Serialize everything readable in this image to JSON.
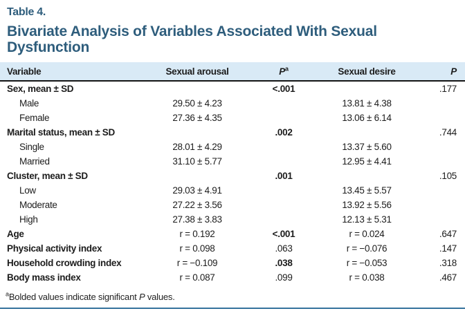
{
  "header": {
    "table_label": "Table 4.",
    "title": "Bivariate Analysis of Variables Associated With Sexual Dysfunction"
  },
  "colors": {
    "accent_teal": "#2e5d7c",
    "header_band_bg": "#d9eaf6",
    "header_rule_black": "#141414",
    "bottom_rule_teal": "#34729c"
  },
  "table": {
    "columns": {
      "variable": "Variable",
      "sexual_arousal": "Sexual arousal",
      "p_arousal": {
        "label": "P",
        "sup": "a"
      },
      "sexual_desire": "Sexual desire",
      "p_desire": "P"
    },
    "rows": [
      {
        "label": "Sex, mean ± SD",
        "bold": true,
        "indent": false,
        "arousal": "",
        "p1": "<.001",
        "p1_bold": true,
        "desire": "",
        "p2": ".177",
        "p2_bold": false
      },
      {
        "label": "Male",
        "bold": false,
        "indent": true,
        "arousal": "29.50 ± 4.23",
        "p1": "",
        "p1_bold": false,
        "desire": "13.81 ± 4.38",
        "p2": "",
        "p2_bold": false
      },
      {
        "label": "Female",
        "bold": false,
        "indent": true,
        "arousal": "27.36 ± 4.35",
        "p1": "",
        "p1_bold": false,
        "desire": "13.06 ± 6.14",
        "p2": "",
        "p2_bold": false
      },
      {
        "label": "Marital status, mean ± SD",
        "bold": true,
        "indent": false,
        "arousal": "",
        "p1": ".002",
        "p1_bold": true,
        "desire": "",
        "p2": ".744",
        "p2_bold": false
      },
      {
        "label": "Single",
        "bold": false,
        "indent": true,
        "arousal": "28.01 ± 4.29",
        "p1": "",
        "p1_bold": false,
        "desire": "13.37 ± 5.60",
        "p2": "",
        "p2_bold": false
      },
      {
        "label": "Married",
        "bold": false,
        "indent": true,
        "arousal": "31.10 ± 5.77",
        "p1": "",
        "p1_bold": false,
        "desire": "12.95 ± 4.41",
        "p2": "",
        "p2_bold": false
      },
      {
        "label": "Cluster, mean ± SD",
        "bold": true,
        "indent": false,
        "arousal": "",
        "p1": ".001",
        "p1_bold": true,
        "desire": "",
        "p2": ".105",
        "p2_bold": false
      },
      {
        "label": "Low",
        "bold": false,
        "indent": true,
        "arousal": "29.03 ± 4.91",
        "p1": "",
        "p1_bold": false,
        "desire": "13.45 ± 5.57",
        "p2": "",
        "p2_bold": false
      },
      {
        "label": "Moderate",
        "bold": false,
        "indent": true,
        "arousal": "27.22 ± 3.56",
        "p1": "",
        "p1_bold": false,
        "desire": "13.92 ± 5.56",
        "p2": "",
        "p2_bold": false
      },
      {
        "label": "High",
        "bold": false,
        "indent": true,
        "arousal": "27.38 ± 3.83",
        "p1": "",
        "p1_bold": false,
        "desire": "12.13 ± 5.31",
        "p2": "",
        "p2_bold": false
      },
      {
        "label": "Age",
        "bold": true,
        "indent": false,
        "arousal": "r = 0.192",
        "p1": "<.001",
        "p1_bold": true,
        "desire": "r = 0.024",
        "p2": ".647",
        "p2_bold": false
      },
      {
        "label": "Physical activity index",
        "bold": true,
        "indent": false,
        "arousal": "r = 0.098",
        "p1": ".063",
        "p1_bold": false,
        "desire": "r = −0.076",
        "p2": ".147",
        "p2_bold": false
      },
      {
        "label": "Household crowding index",
        "bold": true,
        "indent": false,
        "arousal": "r = −0.109",
        "p1": ".038",
        "p1_bold": true,
        "desire": "r = −0.053",
        "p2": ".318",
        "p2_bold": false
      },
      {
        "label": "Body mass index",
        "bold": true,
        "indent": false,
        "arousal": "r = 0.087",
        "p1": ".099",
        "p1_bold": false,
        "desire": "r = 0.038",
        "p2": ".467",
        "p2_bold": false
      }
    ]
  },
  "footnote": {
    "sup": "a",
    "before": "Bolded values indicate significant ",
    "p_italic": "P",
    "after": " values."
  }
}
